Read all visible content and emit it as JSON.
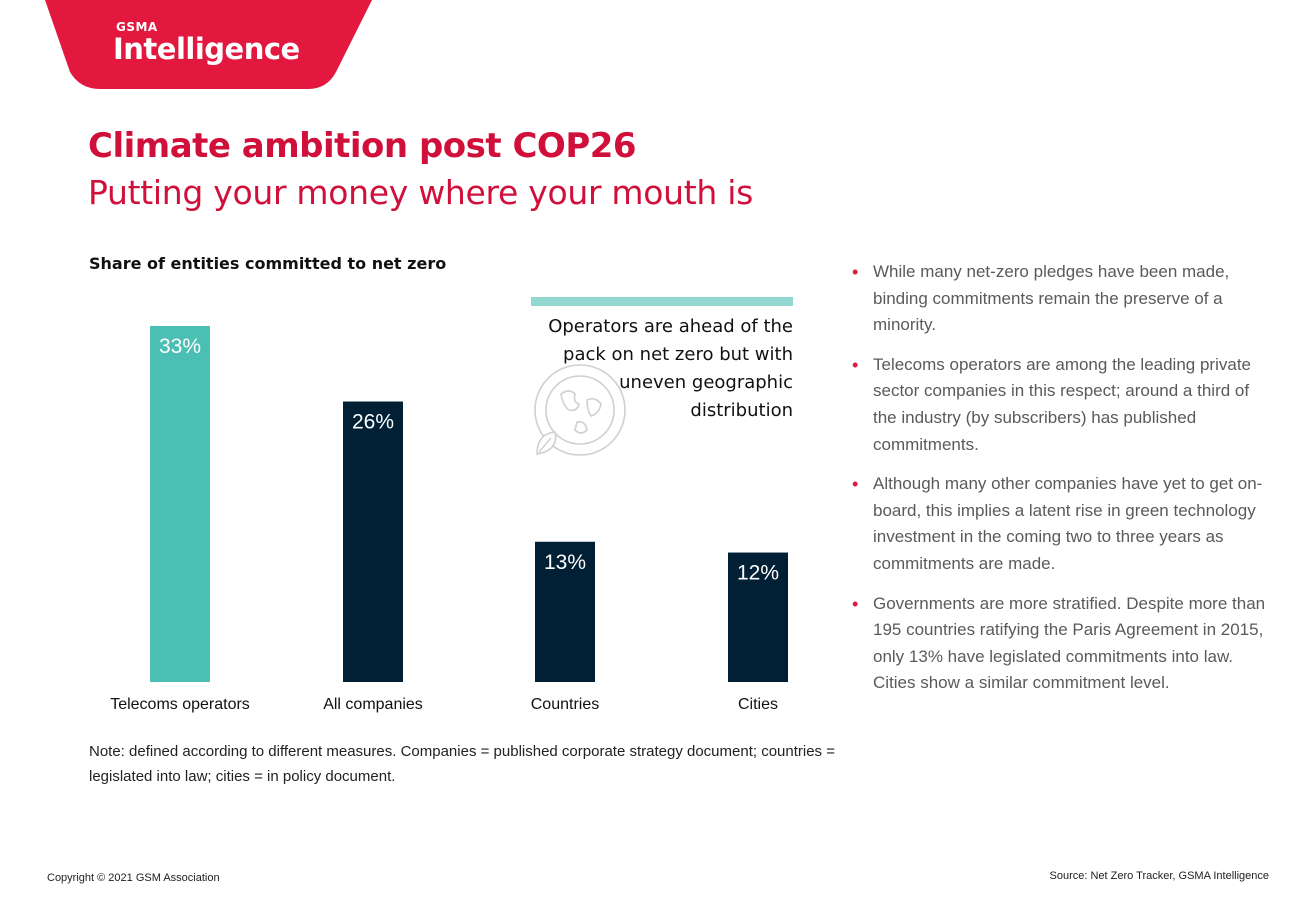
{
  "logo": {
    "small_text": "GSMA",
    "word": "Intelligence"
  },
  "header": {
    "title": "Climate ambition post COP26",
    "subtitle": "Putting your money where your mouth is"
  },
  "colors": {
    "accent": "#e2183f",
    "teal": "#4cbfb5",
    "navy": "#011f35",
    "callout_bar": "#93d8d0"
  },
  "chart_data": {
    "type": "bar",
    "title": "Share of entities committed to net zero",
    "xlabel": "",
    "ylabel": "",
    "categories": [
      "Telecoms operators",
      "All companies",
      "Countries",
      "Cities"
    ],
    "values": [
      33,
      26,
      13,
      12
    ],
    "value_labels": [
      "33%",
      "26%",
      "13%",
      "12%"
    ],
    "bar_colors": [
      "#4cbfb5",
      "#011f35",
      "#011f35",
      "#011f35"
    ],
    "unit": "%",
    "ylim": [
      0,
      33
    ],
    "grid": false
  },
  "callout": {
    "text": "Operators are ahead of the pack on net zero but with uneven geographic distribution",
    "icon": "globe-leaf-icon"
  },
  "bullets": [
    "While many net-zero pledges have been made, binding commitments remain the preserve of a minority.",
    "Telecoms operators are among the leading private sector companies in this respect; around a third of the industry (by subscribers) has published commitments.",
    "Although many other companies have yet to get on-board, this implies a latent rise in green technology investment in the coming two to three years as commitments are made.",
    "Governments are more stratified. Despite more than 195 countries ratifying the Paris Agreement in 2015, only 13% have legislated commitments into law. Cities show a similar commitment level."
  ],
  "bullet_glyph": "•",
  "note": "Note: defined according to different measures. Companies = published corporate strategy document; countries = legislated into law; cities = in policy document.",
  "footer": {
    "copyright": "Copyright © 2021 GSM Association",
    "source": "Source: Net Zero Tracker, GSMA Intelligence"
  }
}
